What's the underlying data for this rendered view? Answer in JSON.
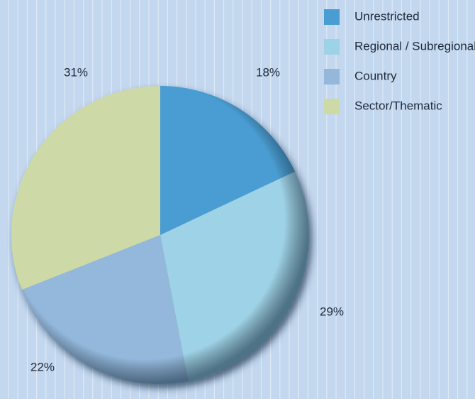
{
  "chart_data": {
    "type": "pie",
    "categories": [
      "Unrestricted",
      "Regional / Subregional",
      "Country",
      "Sector/Thematic"
    ],
    "values": [
      18,
      29,
      22,
      31
    ],
    "value_labels": [
      "18%",
      "29%",
      "22%",
      "31%"
    ],
    "colors": [
      "#4a9dd2",
      "#9ed2e6",
      "#93b8dc",
      "#cdd9a7"
    ],
    "legend": "top-right"
  }
}
